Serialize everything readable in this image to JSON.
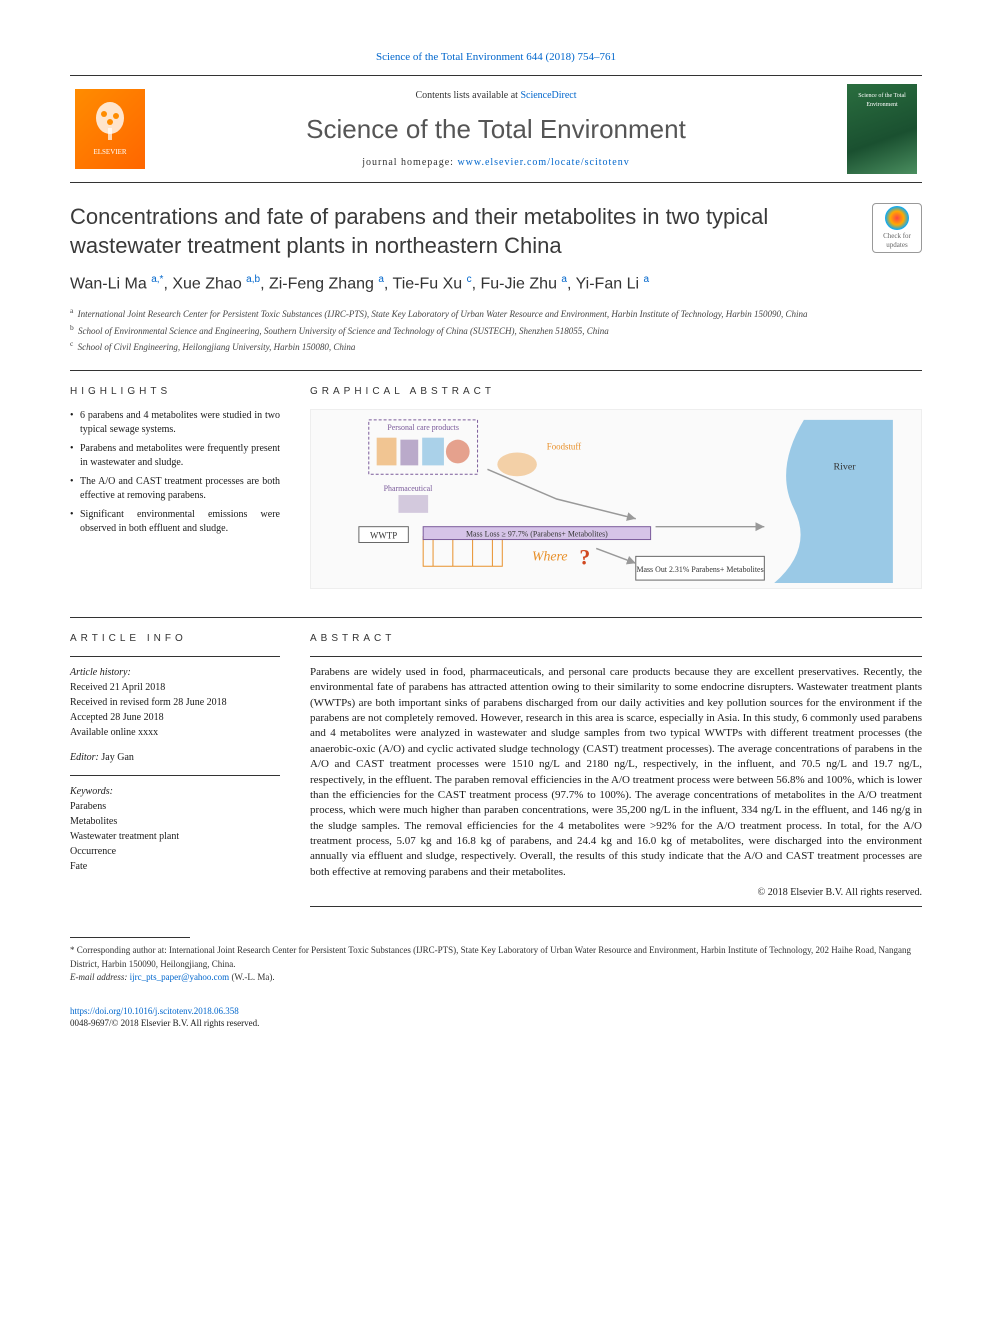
{
  "citation": "Science of the Total Environment 644 (2018) 754–761",
  "header": {
    "contents_prefix": "Contents lists available at ",
    "contents_link": "ScienceDirect",
    "journal_name": "Science of the Total Environment",
    "homepage_prefix": "journal homepage: ",
    "homepage_url": "www.elsevier.com/locate/scitotenv",
    "publisher_logo_text": "ELSEVIER",
    "cover_text": "Science of the Total Environment"
  },
  "title": "Concentrations and fate of parabens and their metabolites in two typical wastewater treatment plants in northeastern China",
  "crossmark_text": "Check for updates",
  "authors_html": "Wan-Li Ma <sup>a,*</sup>, Xue Zhao <sup>a,b</sup>, Zi-Feng Zhang <sup>a</sup>, Tie-Fu Xu <sup>c</sup>, Fu-Jie Zhu <sup>a</sup>, Yi-Fan Li <sup>a</sup>",
  "affiliations": [
    {
      "sup": "a",
      "text": "International Joint Research Center for Persistent Toxic Substances (IJRC-PTS), State Key Laboratory of Urban Water Resource and Environment, Harbin Institute of Technology, Harbin 150090, China"
    },
    {
      "sup": "b",
      "text": "School of Environmental Science and Engineering, Southern University of Science and Technology of China (SUSTECH), Shenzhen 518055, China"
    },
    {
      "sup": "c",
      "text": "School of Civil Engineering, Heilongjiang University, Harbin 150080, China"
    }
  ],
  "highlights": {
    "heading": "HIGHLIGHTS",
    "items": [
      "6 parabens and 4 metabolites were studied in two typical sewage systems.",
      "Parabens and metabolites were frequently present in wastewater and sludge.",
      "The A/O and CAST treatment processes are both effective at removing parabens.",
      "Significant environmental emissions were observed in both effluent and sludge."
    ]
  },
  "graphical_abstract": {
    "heading": "GRAPHICAL ABSTRACT",
    "labels": {
      "products": "Personal care products",
      "foodstuff": "Foodstuff",
      "pharma": "Pharmaceutical",
      "river": "River",
      "wwtp": "WWTP",
      "mass_loss": "Mass Loss ≥ 97.7% (Parabens+ Metabolites)",
      "where": "Where",
      "mass_out": "Mass Out 2.31% Parabens+ Metabolites"
    },
    "colors": {
      "river": "#5aa8d8",
      "box_border": "#666",
      "text": "#333",
      "orange": "#e8902a",
      "red": "#d04820",
      "purple": "#7a5a9a"
    }
  },
  "article_info": {
    "heading": "ARTICLE INFO",
    "history_label": "Article history:",
    "history": [
      "Received 21 April 2018",
      "Received in revised form 28 June 2018",
      "Accepted 28 June 2018",
      "Available online xxxx"
    ],
    "editor_label": "Editor:",
    "editor": "Jay Gan",
    "keywords_label": "Keywords:",
    "keywords": [
      "Parabens",
      "Metabolites",
      "Wastewater treatment plant",
      "Occurrence",
      "Fate"
    ]
  },
  "abstract": {
    "heading": "ABSTRACT",
    "text": "Parabens are widely used in food, pharmaceuticals, and personal care products because they are excellent preservatives. Recently, the environmental fate of parabens has attracted attention owing to their similarity to some endocrine disrupters. Wastewater treatment plants (WWTPs) are both important sinks of parabens discharged from our daily activities and key pollution sources for the environment if the parabens are not completely removed. However, research in this area is scarce, especially in Asia. In this study, 6 commonly used parabens and 4 metabolites were analyzed in wastewater and sludge samples from two typical WWTPs with different treatment processes (the anaerobic-oxic (A/O) and cyclic activated sludge technology (CAST) treatment processes). The average concentrations of parabens in the A/O and CAST treatment processes were 1510 ng/L and 2180 ng/L, respectively, in the influent, and 70.5 ng/L and 19.7 ng/L, respectively, in the effluent. The paraben removal efficiencies in the A/O treatment process were between 56.8% and 100%, which is lower than the efficiencies for the CAST treatment process (97.7% to 100%). The average concentrations of metabolites in the A/O treatment process, which were much higher than paraben concentrations, were 35,200 ng/L in the influent, 334 ng/L in the effluent, and 146 ng/g in the sludge samples. The removal efficiencies for the 4 metabolites were >92% for the A/O treatment process. In total, for the A/O treatment process, 5.07 kg and 16.8 kg of parabens, and 24.4 kg and 16.0 kg of metabolites, were discharged into the environment annually via effluent and sludge, respectively. Overall, the results of this study indicate that the A/O and CAST treatment processes are both effective at removing parabens and their metabolites.",
    "copyright": "© 2018 Elsevier B.V. All rights reserved."
  },
  "footnotes": {
    "corr_label": "* Corresponding author at:",
    "corr_text": "International Joint Research Center for Persistent Toxic Substances (IJRC-PTS), State Key Laboratory of Urban Water Resource and Environment, Harbin Institute of Technology, 202 Haihe Road, Nangang District, Harbin 150090, Heilongjiang, China.",
    "email_label": "E-mail address:",
    "email": "ijrc_pts_paper@yahoo.com",
    "email_author": "(W.-L. Ma)."
  },
  "doi": {
    "url": "https://doi.org/10.1016/j.scitotenv.2018.06.358",
    "issn_line": "0048-9697/© 2018 Elsevier B.V. All rights reserved."
  }
}
